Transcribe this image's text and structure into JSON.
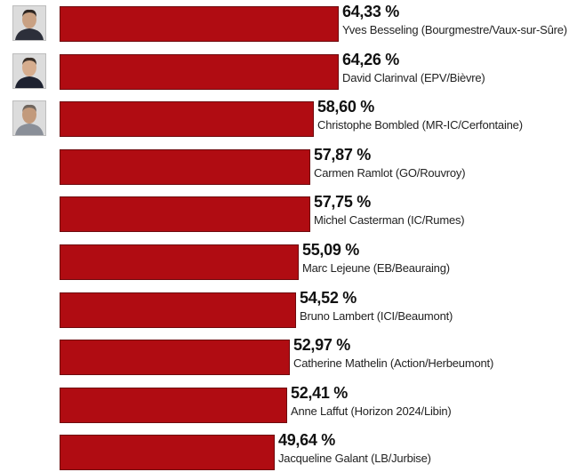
{
  "chart_data": {
    "type": "bar",
    "orientation": "horizontal",
    "bar_color": "#b00c12",
    "x_range": [
      0,
      64.33
    ],
    "items": [
      {
        "value": 64.33,
        "value_label": "64,33 %",
        "name": "Yves Besseling (Bourgmestre/Vaux-sur-Sûre)",
        "has_photo": true
      },
      {
        "value": 64.26,
        "value_label": "64,26 %",
        "name": "David Clarinval (EPV/Bièvre)",
        "has_photo": true
      },
      {
        "value": 58.6,
        "value_label": "58,60 %",
        "name": "Christophe Bombled (MR-IC/Cerfontaine)",
        "has_photo": true
      },
      {
        "value": 57.87,
        "value_label": "57,87 %",
        "name": "Carmen Ramlot (GO/Rouvroy)",
        "has_photo": false
      },
      {
        "value": 57.75,
        "value_label": "57,75 %",
        "name": "Michel Casterman (IC/Rumes)",
        "has_photo": false
      },
      {
        "value": 55.09,
        "value_label": "55,09 %",
        "name": "Marc Lejeune (EB/Beauraing)",
        "has_photo": false
      },
      {
        "value": 54.52,
        "value_label": "54,52 %",
        "name": "Bruno Lambert (ICI/Beaumont)",
        "has_photo": false
      },
      {
        "value": 52.97,
        "value_label": "52,97 %",
        "name": "Catherine Mathelin (Action/Herbeumont)",
        "has_photo": false
      },
      {
        "value": 52.41,
        "value_label": "52,41 %",
        "name": "Anne Laffut (Horizon 2024/Libin)",
        "has_photo": false
      },
      {
        "value": 49.64,
        "value_label": "49,64 %",
        "name": "Jacqueline Galant (LB/Jurbise)",
        "has_photo": false
      }
    ]
  }
}
